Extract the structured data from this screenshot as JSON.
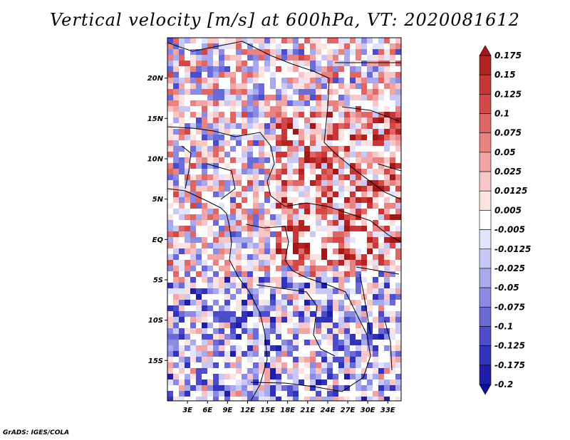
{
  "title": "Vertical velocity [m/s] at 600hPa, VT: 2020081612",
  "footer": "GrADS: IGES/COLA",
  "map": {
    "lon_range": [
      0,
      35
    ],
    "lat_range": [
      -20,
      25
    ],
    "lon_ticks": [
      "3E",
      "6E",
      "9E",
      "12E",
      "15E",
      "18E",
      "21E",
      "24E",
      "27E",
      "30E",
      "33E"
    ],
    "lon_tick_values": [
      3,
      6,
      9,
      12,
      15,
      18,
      21,
      24,
      27,
      30,
      33
    ],
    "lat_ticks": [
      "20N",
      "15N",
      "10N",
      "5N",
      "EQ",
      "5S",
      "10S",
      "15S"
    ],
    "lat_tick_values": [
      20,
      15,
      10,
      5,
      0,
      -5,
      -10,
      -15
    ]
  },
  "colorbar": {
    "levels": [
      "0.175",
      "0.15",
      "0.125",
      "0.1",
      "0.075",
      "0.05",
      "0.025",
      "0.0125",
      "0.005",
      "-0.005",
      "-0.0125",
      "-0.025",
      "-0.05",
      "-0.075",
      "-0.1",
      "-0.125",
      "-0.175",
      "-0.2"
    ],
    "colors": [
      "#a01818",
      "#b42323",
      "#c83737",
      "#d54848",
      "#e06565",
      "#e98383",
      "#f2a5a5",
      "#f8c6c6",
      "#fde2e2",
      "#ffffff",
      "#e3e3fb",
      "#c8c8f6",
      "#a9a9ee",
      "#8b8be3",
      "#6a6ad8",
      "#4d4dcc",
      "#3232bb",
      "#1e1eaa",
      "#1010a0"
    ]
  }
}
